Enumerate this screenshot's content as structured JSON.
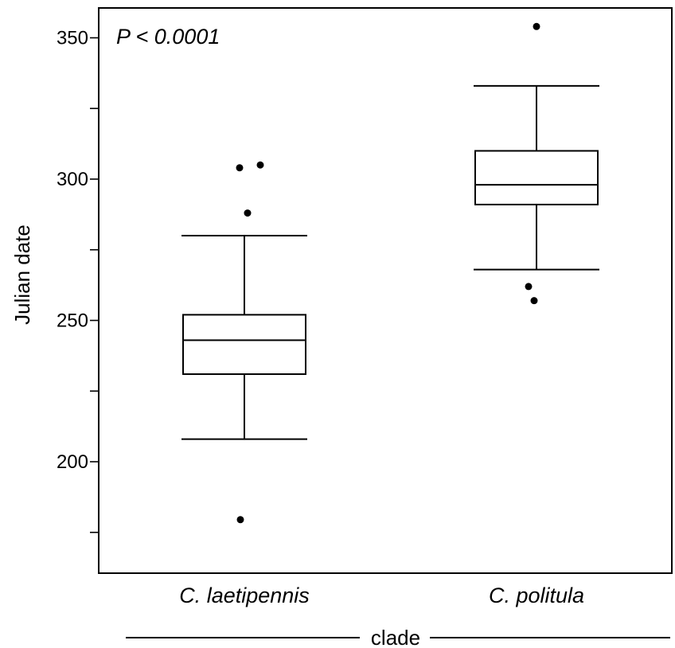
{
  "chart_data": {
    "type": "box",
    "ylabel": "Julian date",
    "xlabel": "clade",
    "annotation": "P < 0.0001",
    "ylim": [
      165,
      360
    ],
    "yticks_major": [
      200,
      250,
      300,
      350
    ],
    "yticks_minor": [
      175,
      225,
      275,
      325
    ],
    "categories": [
      "C. laetipennis",
      "C. politula"
    ],
    "boxes": [
      {
        "category": "C. laetipennis",
        "whisker_low": 208,
        "q1": 231,
        "median": 243,
        "q3": 252,
        "whisker_high": 280,
        "outliers": [
          304,
          305,
          288,
          179.5
        ]
      },
      {
        "category": "C. politula",
        "whisker_low": 268,
        "q1": 291,
        "median": 298,
        "q3": 310,
        "whisker_high": 333,
        "outliers": [
          354,
          262,
          257
        ]
      }
    ]
  }
}
